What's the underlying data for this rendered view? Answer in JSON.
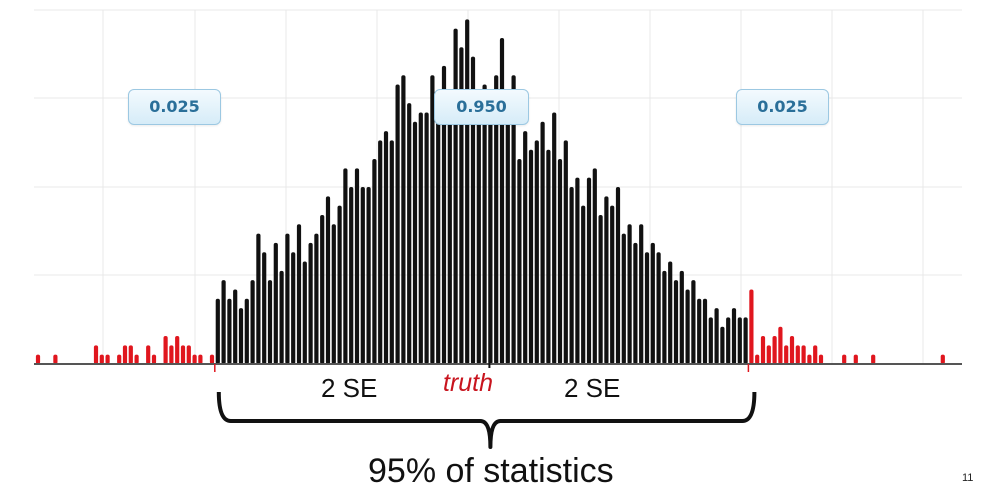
{
  "chart_data": {
    "type": "dot histogram",
    "title": "",
    "xlabel": "",
    "ylabel": "",
    "grid": true,
    "ylim": [
      0,
      38
    ],
    "truth_index": 78,
    "lower_cutoff_index": 31,
    "upper_cutoff_index": 123,
    "series": [
      {
        "values": [
          1,
          0,
          0,
          1,
          0,
          0,
          0,
          0,
          0,
          0,
          2,
          1,
          1,
          0,
          1,
          2,
          2,
          1,
          0,
          2,
          1,
          0,
          3,
          2,
          3,
          2,
          2,
          1,
          1,
          0,
          1,
          7,
          9,
          7,
          8,
          6,
          7,
          9,
          14,
          12,
          9,
          13,
          10,
          14,
          12,
          15,
          11,
          13,
          14,
          16,
          18,
          15,
          17,
          21,
          19,
          21,
          19,
          19,
          22,
          24,
          25,
          24,
          30,
          31,
          28,
          26,
          27,
          27,
          31,
          28,
          32,
          29,
          36,
          34,
          37,
          33,
          29,
          30,
          28,
          31,
          35,
          28,
          31,
          22,
          25,
          23,
          24,
          26,
          23,
          27,
          22,
          24,
          19,
          20,
          17,
          20,
          21,
          16,
          18,
          17,
          19,
          14,
          15,
          13,
          15,
          12,
          13,
          12,
          10,
          11,
          9,
          10,
          8,
          9,
          7,
          7,
          5,
          6,
          4,
          5,
          6,
          5,
          5,
          8,
          1,
          3,
          2,
          3,
          4,
          2,
          3,
          2,
          2,
          1,
          2,
          1,
          0,
          0,
          0,
          1,
          0,
          1,
          0,
          0,
          1,
          0,
          0,
          0,
          0,
          0,
          0,
          0,
          0,
          0,
          0,
          0,
          1
        ],
        "colors": [
          "#e0161e",
          "#111111",
          "#e0161e"
        ]
      }
    ],
    "proportions": {
      "left_tail": "0.025",
      "middle": "0.950",
      "right_tail": "0.025"
    },
    "annotations": {
      "left_span": "2 SE",
      "right_span": "2 SE",
      "center_marker": "truth",
      "brace_caption": "95% of statistics"
    }
  },
  "page": {
    "number": "11"
  }
}
